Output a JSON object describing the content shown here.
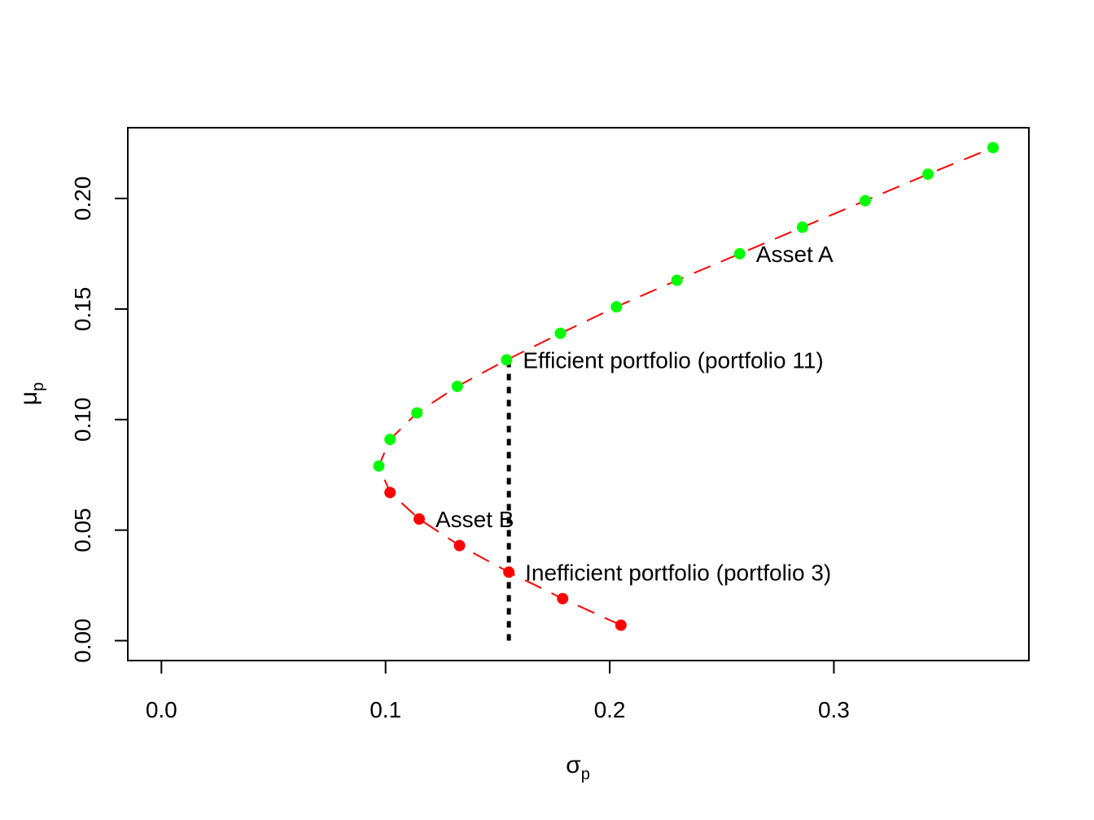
{
  "chart_data": {
    "type": "scatter",
    "xlabel": "σ",
    "xlabel_sub": "p",
    "ylabel": "μ",
    "ylabel_sub": "p",
    "xlim": [
      -0.015,
      0.387
    ],
    "ylim": [
      -0.009,
      0.232
    ],
    "x_ticks": [
      0.0,
      0.1,
      0.2,
      0.3
    ],
    "x_tick_labels": [
      "0.0",
      "0.1",
      "0.2",
      "0.3"
    ],
    "y_ticks": [
      0.0,
      0.05,
      0.1,
      0.15,
      0.2
    ],
    "y_tick_labels": [
      "0.00",
      "0.05",
      "0.10",
      "0.15",
      "0.20"
    ],
    "grid": false,
    "frontier_line_color": "#FF0000",
    "series": [
      {
        "color": "#00FF00",
        "points": [
          {
            "x": 0.097,
            "y": 0.079
          },
          {
            "x": 0.102,
            "y": 0.091
          },
          {
            "x": 0.114,
            "y": 0.103
          },
          {
            "x": 0.132,
            "y": 0.115
          },
          {
            "x": 0.154,
            "y": 0.127
          },
          {
            "x": 0.178,
            "y": 0.139
          },
          {
            "x": 0.203,
            "y": 0.151
          },
          {
            "x": 0.23,
            "y": 0.163
          },
          {
            "x": 0.258,
            "y": 0.175
          },
          {
            "x": 0.286,
            "y": 0.187
          },
          {
            "x": 0.314,
            "y": 0.199
          },
          {
            "x": 0.342,
            "y": 0.211
          },
          {
            "x": 0.371,
            "y": 0.223
          }
        ]
      },
      {
        "color": "#FF0000",
        "points": [
          {
            "x": 0.102,
            "y": 0.067
          },
          {
            "x": 0.115,
            "y": 0.055
          },
          {
            "x": 0.133,
            "y": 0.043
          },
          {
            "x": 0.155,
            "y": 0.031
          },
          {
            "x": 0.179,
            "y": 0.019
          },
          {
            "x": 0.205,
            "y": 0.007
          }
        ]
      }
    ],
    "vertical_line": {
      "x": 0.155,
      "y_from": 0.0,
      "y_to": 0.127,
      "color": "#000000",
      "style": "dotted"
    },
    "annotations": [
      {
        "text": "Asset A",
        "x": 0.258,
        "y": 0.175
      },
      {
        "text": "Efficient portfolio (portfolio 11)",
        "x": 0.154,
        "y": 0.127
      },
      {
        "text": "Asset B",
        "x": 0.115,
        "y": 0.055
      },
      {
        "text": "Inefficient portfolio (portfolio 3)",
        "x": 0.155,
        "y": 0.031
      }
    ]
  }
}
